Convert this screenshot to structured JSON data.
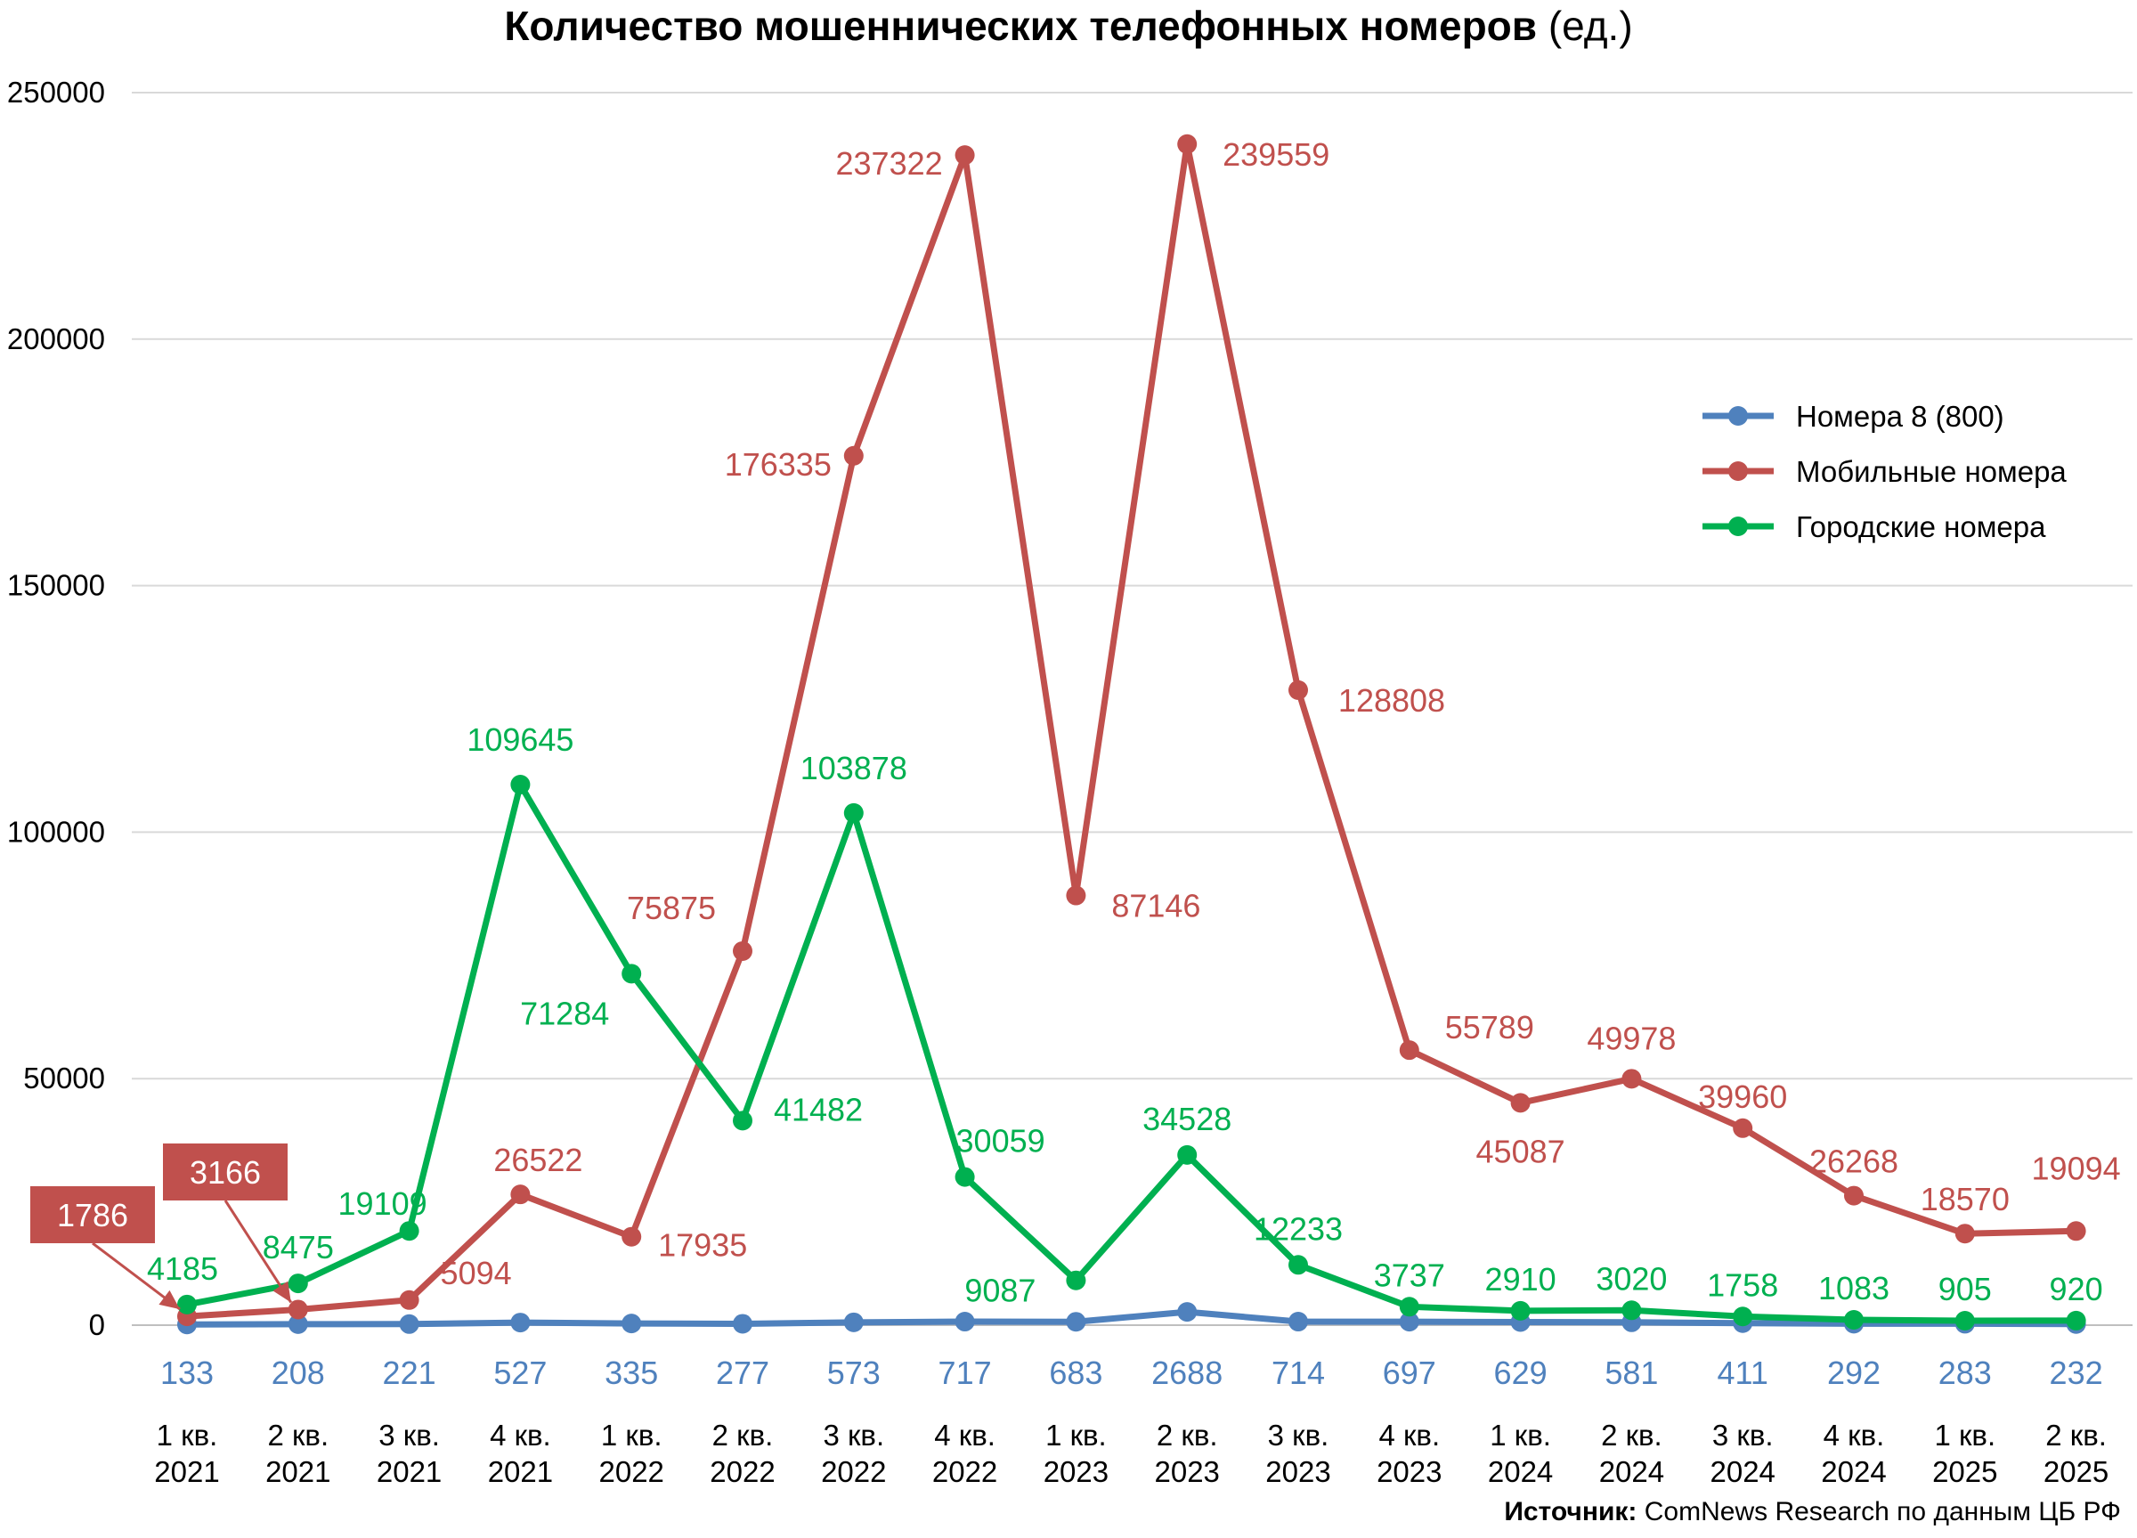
{
  "title_main": "Количество мошеннических телефонных номеров",
  "title_unit": "(ед.)",
  "source_label": "Источник:",
  "source_text": "ComNews Research по данным ЦБ РФ",
  "chart_data": {
    "type": "line",
    "title": "Количество мошеннических телефонных номеров (ед.)",
    "ylim": [
      0,
      250000
    ],
    "yticks": [
      "0",
      "50000",
      "100000",
      "150000",
      "200000",
      "250000"
    ],
    "grid": true,
    "legend_position": "top-right",
    "categories": [
      [
        "1 кв.",
        "2021"
      ],
      [
        "2 кв.",
        "2021"
      ],
      [
        "3 кв.",
        "2021"
      ],
      [
        "4 кв.",
        "2021"
      ],
      [
        "1 кв.",
        "2022"
      ],
      [
        "2 кв.",
        "2022"
      ],
      [
        "3 кв.",
        "2022"
      ],
      [
        "4 кв.",
        "2022"
      ],
      [
        "1 кв.",
        "2023"
      ],
      [
        "2 кв.",
        "2023"
      ],
      [
        "3 кв.",
        "2023"
      ],
      [
        "4 кв.",
        "2023"
      ],
      [
        "1 кв.",
        "2024"
      ],
      [
        "2 кв.",
        "2024"
      ],
      [
        "3 кв.",
        "2024"
      ],
      [
        "4 кв.",
        "2024"
      ],
      [
        "1 кв.",
        "2025"
      ],
      [
        "2 кв.",
        "2025"
      ]
    ],
    "series": [
      {
        "name": "Номера 8 (800)",
        "color": "#4F81BD",
        "values": [
          133,
          208,
          221,
          527,
          335,
          277,
          573,
          717,
          683,
          2688,
          714,
          697,
          629,
          581,
          411,
          292,
          283,
          232
        ]
      },
      {
        "name": "Мобильные номера",
        "color": "#C0504D",
        "values": [
          1786,
          3166,
          5094,
          26522,
          17935,
          75875,
          176335,
          237322,
          87146,
          239559,
          128808,
          55789,
          45087,
          49978,
          39960,
          26268,
          18570,
          19094
        ]
      },
      {
        "name": "Городские номера",
        "color": "#00B050",
        "values": [
          4185,
          8475,
          19109,
          109645,
          71284,
          41482,
          103878,
          30059,
          9087,
          34528,
          12233,
          3737,
          2910,
          3020,
          1758,
          1083,
          905,
          920
        ]
      }
    ]
  }
}
